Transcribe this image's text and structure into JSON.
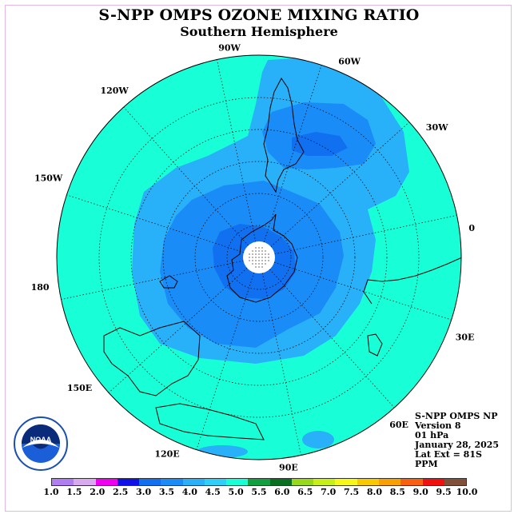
{
  "title": "S-NPP OMPS OZONE MIXING RATIO",
  "subtitle": "Southern Hemisphere",
  "longitude_labels": [
    "90W",
    "60W",
    "30W",
    "0",
    "30E",
    "60E",
    "90E",
    "120E",
    "150E",
    "180",
    "150W",
    "120W"
  ],
  "info": {
    "line1": "S-NPP OMPS NP",
    "line2": "Version 8",
    "line3": "01 hPa",
    "line4": "January 28, 2025",
    "line5": "Lat Ext = 81S",
    "line6": "PPM"
  },
  "colorbar": {
    "ticks": [
      "1.0",
      "1.5",
      "2.0",
      "2.5",
      "3.0",
      "3.5",
      "4.0",
      "4.5",
      "5.0",
      "5.5",
      "6.0",
      "6.5",
      "7.0",
      "7.5",
      "8.0",
      "8.5",
      "9.0",
      "9.5",
      "10.0"
    ],
    "colors": [
      "#b07ef0",
      "#d8a8f0",
      "#f000f0",
      "#1010e8",
      "#1070f0",
      "#1a8cf8",
      "#28b0f8",
      "#30cff8",
      "#18ffd8",
      "#10a040",
      "#087020",
      "#98d818",
      "#c8f018",
      "#f8f818",
      "#f8c800",
      "#f8a000",
      "#f86010",
      "#f01010",
      "#805038"
    ]
  },
  "map_colors": {
    "outer": "#18ffd8",
    "level_4_0": "#28b0f8",
    "level_3_5": "#1a8cf8",
    "level_3_0": "#1070f0",
    "pole_hole": "#ffffff"
  },
  "logo_text": "NOAA"
}
